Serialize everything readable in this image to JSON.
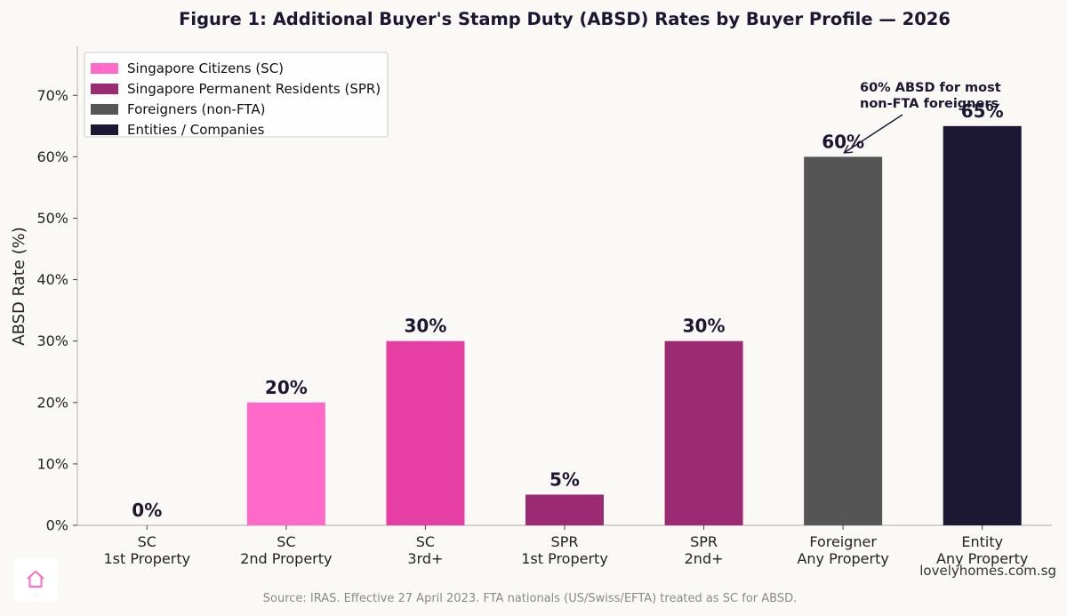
{
  "chart_data": {
    "type": "bar",
    "title": "Figure 1: Additional Buyer's Stamp Duty (ABSD) Rates by Buyer Profile — 2026",
    "ylabel": "ABSD Rate (%)",
    "xlabel": "",
    "ylim": [
      0,
      78
    ],
    "yticks": [
      "0%",
      "10%",
      "20%",
      "30%",
      "40%",
      "50%",
      "60%",
      "70%"
    ],
    "ytick_values": [
      0,
      10,
      20,
      30,
      40,
      50,
      60,
      70
    ],
    "grid": false,
    "legend_position": "top-left",
    "categories": [
      [
        "SC",
        "1st Property"
      ],
      [
        "SC",
        "2nd Property"
      ],
      [
        "SC",
        "3rd+"
      ],
      [
        "SPR",
        "1st Property"
      ],
      [
        "SPR",
        "2nd+"
      ],
      [
        "Foreigner",
        "Any Property"
      ],
      [
        "Entity",
        "Any Property"
      ]
    ],
    "values": [
      0,
      20,
      30,
      5,
      30,
      60,
      65
    ],
    "value_labels": [
      "0%",
      "20%",
      "30%",
      "5%",
      "30%",
      "60%",
      "65%"
    ],
    "colors": [
      "#ff69c8",
      "#ff69c8",
      "#e63ea3",
      "#9b2a72",
      "#9b2a72",
      "#555555",
      "#1c1733"
    ],
    "legend": [
      {
        "label": "Singapore Citizens (SC)",
        "color": "#ff69c8"
      },
      {
        "label": "Singapore Permanent Residents (SPR)",
        "color": "#9b2a72"
      },
      {
        "label": "Foreigners (non-FTA)",
        "color": "#555555"
      },
      {
        "label": "Entities / Companies",
        "color": "#1c1733"
      }
    ],
    "annotation": {
      "lines": [
        "60% ABSD for most",
        "non-FTA foreigners"
      ],
      "target_index": 5
    }
  },
  "source": "Source: IRAS. Effective 27 April 2023. FTA nationals (US/Swiss/EFTA) treated as SC for ABSD.",
  "watermark": "lovelyhomes.com.sg",
  "logo_icon": "home-icon",
  "colors": {
    "background": "#faf9f6",
    "title": "#1b1733",
    "accent_pink": "#ff69c8"
  }
}
